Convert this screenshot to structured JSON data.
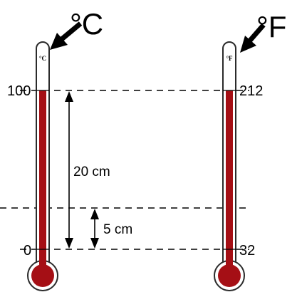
{
  "diagram": {
    "celsius": {
      "unit_label": "°C",
      "scale_label": "°C",
      "top_value": "100",
      "bottom_value": "0"
    },
    "fahrenheit": {
      "unit_label": "°F",
      "scale_label": "°F",
      "top_value": "212",
      "bottom_value": "32"
    },
    "measurements": {
      "long_span": "20 cm",
      "short_span": "5 cm"
    },
    "colors": {
      "mercury": "#a50f15",
      "outline": "#2b2b2b",
      "tube_fill": "#ffffff",
      "dashes": "#000000"
    }
  }
}
